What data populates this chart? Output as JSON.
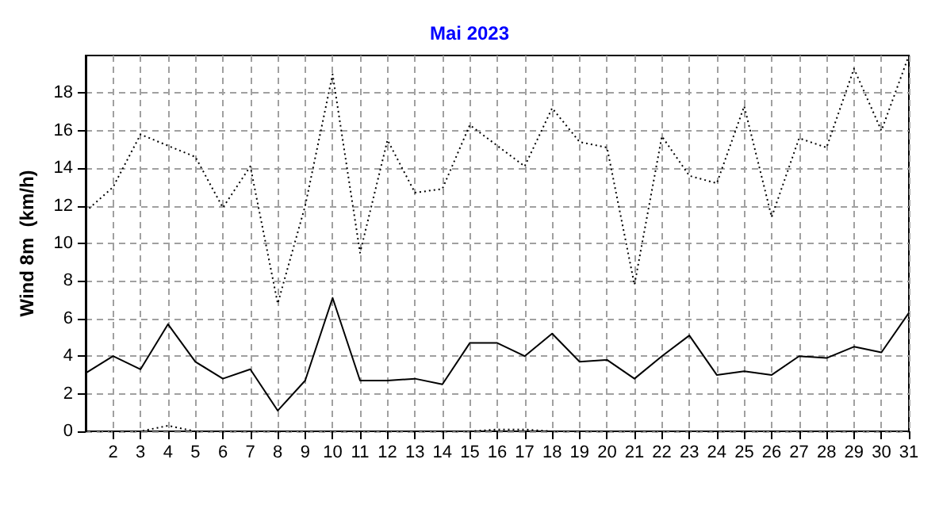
{
  "chart_data": {
    "type": "line",
    "title": "Mai 2023",
    "ylabel": "Wind 8m  (km/h)",
    "x": [
      1,
      2,
      3,
      4,
      5,
      6,
      7,
      8,
      9,
      10,
      11,
      12,
      13,
      14,
      15,
      16,
      17,
      18,
      19,
      20,
      21,
      22,
      23,
      24,
      25,
      26,
      27,
      28,
      29,
      30,
      31
    ],
    "series": [
      {
        "color": "#000000",
        "line_style": "dotted",
        "values": [
          11.7,
          13.0,
          15.8,
          15.2,
          14.6,
          11.9,
          14.1,
          6.8,
          12.0,
          19.0,
          9.5,
          15.5,
          12.7,
          12.9,
          16.3,
          15.2,
          14.1,
          17.2,
          15.4,
          15.1,
          7.8,
          15.7,
          13.6,
          13.2,
          17.3,
          11.4,
          15.6,
          15.1,
          19.3,
          16.0,
          20.0
        ]
      },
      {
        "color": "#000000",
        "line_style": "solid",
        "values": [
          3.1,
          4.0,
          3.3,
          5.7,
          3.7,
          2.8,
          3.3,
          1.1,
          2.7,
          7.1,
          2.7,
          2.7,
          2.8,
          2.5,
          4.7,
          4.7,
          4.0,
          5.2,
          3.7,
          3.8,
          2.8,
          4.0,
          5.1,
          3.0,
          3.2,
          3.0,
          4.0,
          3.9,
          4.5,
          4.2,
          6.3
        ]
      },
      {
        "color": "#000000",
        "line_style": "dotted",
        "values": [
          0,
          0,
          0,
          0.3,
          0,
          0,
          0,
          0,
          0,
          0,
          0,
          0,
          0,
          0,
          0,
          0.1,
          0.1,
          0,
          0,
          0,
          0,
          0,
          0,
          0,
          0,
          0,
          0,
          0,
          0,
          0,
          0
        ]
      }
    ],
    "xlim": [
      1,
      31
    ],
    "xticks": [
      2,
      3,
      4,
      5,
      6,
      7,
      8,
      9,
      10,
      11,
      12,
      13,
      14,
      15,
      16,
      17,
      18,
      19,
      20,
      21,
      22,
      23,
      24,
      25,
      26,
      27,
      28,
      29,
      30,
      31
    ],
    "ylim": [
      0,
      20
    ],
    "yticks": [
      0,
      2,
      4,
      6,
      8,
      10,
      12,
      14,
      16,
      18
    ],
    "grid": true,
    "marker": "none"
  }
}
